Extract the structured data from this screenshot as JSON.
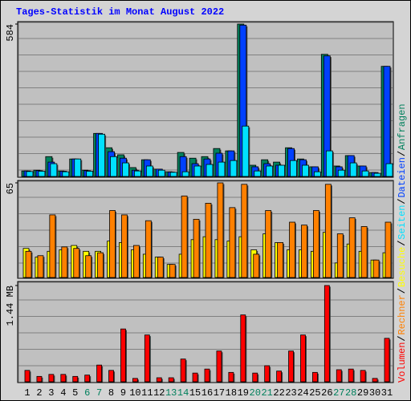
{
  "chart_data": [
    {
      "type": "bar",
      "title": "Tages-Statistik im Monat August 2022",
      "ylim": [
        0,
        584
      ],
      "yticks": [
        584
      ],
      "series": [
        {
          "name": "Anfragen",
          "color": "#00805c",
          "values": [
            21,
            24,
            76,
            21,
            67,
            24,
            165,
            110,
            83,
            34,
            64,
            28,
            18,
            92,
            70,
            76,
            107,
            98,
            584,
            43,
            64,
            55,
            110,
            67,
            37,
            468,
            40,
            80,
            40,
            15,
            422
          ]
        },
        {
          "name": "Dateien",
          "color": "#0040ff",
          "values": [
            21,
            22,
            55,
            20,
            67,
            22,
            165,
            95,
            70,
            24,
            64,
            28,
            17,
            76,
            49,
            67,
            89,
            98,
            580,
            37,
            49,
            43,
            107,
            64,
            37,
            462,
            37,
            80,
            40,
            15,
            422
          ]
        },
        {
          "name": "Seiten",
          "color": "#00e0ff",
          "values": [
            19,
            20,
            49,
            18,
            67,
            20,
            162,
            76,
            52,
            21,
            40,
            24,
            16,
            18,
            40,
            46,
            55,
            61,
            193,
            21,
            40,
            43,
            61,
            43,
            18,
            98,
            24,
            52,
            21,
            12,
            49
          ]
        }
      ]
    },
    {
      "type": "bar",
      "ylim": [
        0,
        65
      ],
      "yticks": [
        65
      ],
      "series": [
        {
          "name": "Besuche",
          "color": "#ffff00",
          "values": [
            20,
            14,
            18,
            19,
            22,
            18,
            18,
            25,
            24,
            19,
            16,
            14,
            9,
            16,
            26,
            28,
            26,
            25,
            28,
            19,
            30,
            24,
            19,
            19,
            18,
            31,
            10,
            23,
            18,
            12,
            17
          ]
        },
        {
          "name": "Rechner",
          "color": "#ff8000",
          "values": [
            18,
            15,
            43,
            21,
            20,
            15,
            17,
            46,
            43,
            22,
            39,
            14,
            9,
            56,
            40,
            51,
            65,
            48,
            64,
            16,
            46,
            24,
            38,
            36,
            46,
            64,
            30,
            41,
            35,
            12,
            38
          ]
        }
      ]
    },
    {
      "type": "bar",
      "ylim": [
        0,
        1.44
      ],
      "yticks": [
        {
          "value": 1.44,
          "label": "1.44 MB"
        }
      ],
      "categories": [
        "1",
        "2",
        "3",
        "4",
        "5",
        "6",
        "7",
        "8",
        "9",
        "10",
        "11",
        "12",
        "13",
        "14",
        "15",
        "16",
        "17",
        "18",
        "19",
        "20",
        "21",
        "22",
        "23",
        "24",
        "25",
        "26",
        "27",
        "28",
        "29",
        "30",
        "31"
      ],
      "category_colors": [
        "#000000",
        "#000000",
        "#000000",
        "#000000",
        "#000000",
        "#00805c",
        "#00805c",
        "#000000",
        "#000000",
        "#000000",
        "#000000",
        "#000000",
        "#00805c",
        "#00805c",
        "#000000",
        "#000000",
        "#000000",
        "#000000",
        "#000000",
        "#00805c",
        "#00805c",
        "#000000",
        "#000000",
        "#000000",
        "#000000",
        "#000000",
        "#00805c",
        "#00805c",
        "#000000",
        "#000000",
        "#000000"
      ],
      "series": [
        {
          "name": "Volumen",
          "color": "#ff0000",
          "values": [
            0.17,
            0.08,
            0.11,
            0.11,
            0.08,
            0.1,
            0.25,
            0.17,
            0.79,
            0.05,
            0.7,
            0.06,
            0.06,
            0.34,
            0.13,
            0.19,
            0.46,
            0.14,
            1.0,
            0.13,
            0.24,
            0.16,
            0.46,
            0.7,
            0.14,
            1.44,
            0.18,
            0.19,
            0.17,
            0.05,
            0.65
          ]
        }
      ]
    }
  ]
}
